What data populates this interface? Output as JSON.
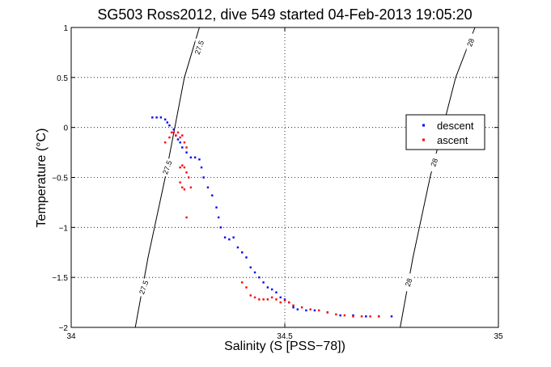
{
  "chart_data": {
    "type": "scatter",
    "title": "SG503 Ross2012, dive 549 started 04-Feb-2013 19:05:20",
    "xlabel": "Salinity (S [PSS−78])",
    "ylabel": "Temperature (°C)",
    "xlim": [
      34,
      35
    ],
    "ylim": [
      -2,
      1
    ],
    "xticks": [
      34,
      34.5,
      35
    ],
    "xtick_labels": [
      "34",
      "34.5",
      "35"
    ],
    "yticks": [
      1,
      0.5,
      0,
      -0.5,
      -1,
      -1.5,
      -2
    ],
    "ytick_labels": [
      "1",
      "0.5",
      "0",
      "−0.5",
      "−1",
      "−1.5",
      "−2"
    ],
    "grid": true,
    "legend_position": "right",
    "series": [
      {
        "name": "descent",
        "color": "#0000ff",
        "x": [
          34.19,
          34.2,
          34.21,
          34.22,
          34.225,
          34.23,
          34.24,
          34.245,
          34.25,
          34.255,
          34.26,
          34.27,
          34.28,
          34.29,
          34.3,
          34.305,
          34.31,
          34.32,
          34.33,
          34.34,
          34.345,
          34.35,
          34.36,
          34.37,
          34.38,
          34.39,
          34.4,
          34.41,
          34.42,
          34.43,
          34.44,
          34.45,
          34.46,
          34.47,
          34.48,
          34.49,
          34.5,
          34.51,
          34.52,
          34.53,
          34.55,
          34.57,
          34.6,
          34.63,
          34.66,
          34.69,
          34.72,
          34.75
        ],
        "y": [
          0.1,
          0.1,
          0.1,
          0.08,
          0.05,
          0.02,
          -0.02,
          -0.08,
          -0.12,
          -0.15,
          -0.2,
          -0.25,
          -0.3,
          -0.3,
          -0.32,
          -0.4,
          -0.5,
          -0.6,
          -0.68,
          -0.8,
          -0.9,
          -1.0,
          -1.1,
          -1.12,
          -1.1,
          -1.2,
          -1.25,
          -1.3,
          -1.4,
          -1.45,
          -1.5,
          -1.55,
          -1.6,
          -1.62,
          -1.65,
          -1.7,
          -1.72,
          -1.75,
          -1.8,
          -1.82,
          -1.83,
          -1.83,
          -1.85,
          -1.88,
          -1.88,
          -1.89,
          -1.89,
          -1.89
        ]
      },
      {
        "name": "ascent",
        "color": "#ff0000",
        "x": [
          34.22,
          34.23,
          34.235,
          34.24,
          34.245,
          34.25,
          34.255,
          34.26,
          34.265,
          34.27,
          34.255,
          34.26,
          34.265,
          34.27,
          34.275,
          34.28,
          34.255,
          34.26,
          34.265,
          34.27,
          34.4,
          34.41,
          34.42,
          34.43,
          34.44,
          34.45,
          34.46,
          34.47,
          34.48,
          34.49,
          34.5,
          34.51,
          34.52,
          34.54,
          34.56,
          34.58,
          34.6,
          34.62,
          34.64,
          34.66,
          34.68,
          34.7,
          34.72
        ],
        "y": [
          -0.15,
          -0.1,
          -0.05,
          -0.05,
          -0.08,
          -0.05,
          -0.1,
          -0.08,
          -0.15,
          -0.2,
          -0.4,
          -0.38,
          -0.4,
          -0.45,
          -0.5,
          -0.6,
          -0.55,
          -0.6,
          -0.62,
          -0.9,
          -1.55,
          -1.6,
          -1.68,
          -1.7,
          -1.72,
          -1.72,
          -1.72,
          -1.7,
          -1.72,
          -1.75,
          -1.73,
          -1.75,
          -1.78,
          -1.8,
          -1.82,
          -1.83,
          -1.85,
          -1.87,
          -1.88,
          -1.89,
          -1.89,
          -1.89,
          -1.89
        ]
      }
    ],
    "contours": [
      {
        "label": "27.5",
        "x": [
          34.15,
          34.18,
          34.22,
          34.265,
          34.3
        ],
        "y": [
          -2,
          -1.3,
          -0.5,
          0.5,
          1
        ]
      },
      {
        "label": "28",
        "x": [
          34.77,
          34.8,
          34.84,
          34.9,
          34.945
        ],
        "y": [
          -2,
          -1.3,
          -0.5,
          0.5,
          1
        ]
      }
    ],
    "contour_labels": [
      {
        "text": "27.5",
        "x": 34.3,
        "y": 0.8
      },
      {
        "text": "27.5",
        "x": 34.225,
        "y": -0.4
      },
      {
        "text": "27.5",
        "x": 34.17,
        "y": -1.6
      },
      {
        "text": "28",
        "x": 34.935,
        "y": 0.85
      },
      {
        "text": "28",
        "x": 34.85,
        "y": -0.35
      },
      {
        "text": "28",
        "x": 34.79,
        "y": -1.55
      }
    ]
  }
}
